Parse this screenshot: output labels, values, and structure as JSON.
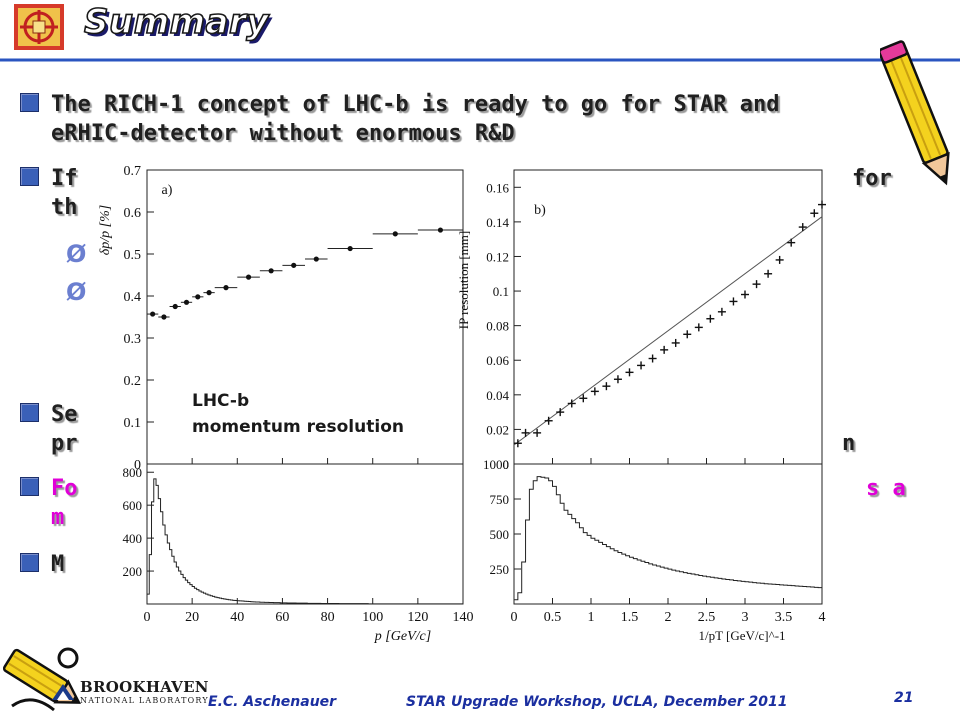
{
  "slide": {
    "title": "Summary",
    "bullets": [
      {
        "line1": "The RICH-1 concept of LHC-b is ready to go for STAR and",
        "line2": "eRHIC-detector without enormous R&D"
      },
      {
        "line1": "If",
        "line1_right": "for",
        "line2": "th"
      },
      {
        "line1": "Se",
        "line2": "pr",
        "line2_right": "n"
      },
      {
        "line1": "Fo",
        "line1_right": "s a",
        "line2": "m"
      },
      {
        "line1": "M"
      }
    ],
    "sub_markers": [
      "Ø",
      "Ø"
    ]
  },
  "annotation": {
    "line1": "LHC-b",
    "line2": "momentum resolution"
  },
  "footer": {
    "author": "E.C. Aschenauer",
    "event": "STAR Upgrade Workshop, UCLA, December 2011",
    "page": "21",
    "lab_name": "BROOKHAVEN",
    "lab_sub": "NATIONAL LABORATORY"
  },
  "colors": {
    "title_line": "#2a55c0",
    "bullet_box": "#3a60b8",
    "highlight": "#e000d8",
    "footer_text": "#1b2fa0"
  },
  "icons": [
    "lab-logo-icon",
    "pencil-icon",
    "pencil-icon",
    "bnl-logo-icon"
  ],
  "chart_data": [
    {
      "type": "scatter",
      "panel_label": "a)",
      "ylabel": "δp/p [%]",
      "xlim": [
        0,
        140
      ],
      "ylim": [
        0,
        0.7
      ],
      "xticks": [
        0,
        20,
        40,
        60,
        80,
        100,
        120,
        140
      ],
      "yticks": [
        0,
        0.1,
        0.2,
        0.3,
        0.4,
        0.5,
        0.6,
        0.7
      ],
      "points": [
        {
          "x": 2.5,
          "y": 0.357,
          "xerr": 2.5
        },
        {
          "x": 7.5,
          "y": 0.35,
          "xerr": 2.5
        },
        {
          "x": 12.5,
          "y": 0.375,
          "xerr": 2.5
        },
        {
          "x": 17.5,
          "y": 0.385,
          "xerr": 2.5
        },
        {
          "x": 22.5,
          "y": 0.398,
          "xerr": 2.5
        },
        {
          "x": 27.5,
          "y": 0.408,
          "xerr": 2.5
        },
        {
          "x": 35,
          "y": 0.42,
          "xerr": 5
        },
        {
          "x": 45,
          "y": 0.445,
          "xerr": 5
        },
        {
          "x": 55,
          "y": 0.46,
          "xerr": 5
        },
        {
          "x": 65,
          "y": 0.473,
          "xerr": 5
        },
        {
          "x": 75,
          "y": 0.488,
          "xerr": 5
        },
        {
          "x": 90,
          "y": 0.513,
          "xerr": 10
        },
        {
          "x": 110,
          "y": 0.548,
          "xerr": 10
        },
        {
          "x": 130,
          "y": 0.557,
          "xerr": 10
        }
      ]
    },
    {
      "type": "scatter",
      "panel_label": "b)",
      "ylabel": "IP resolution [mm]",
      "xlim": [
        0,
        4
      ],
      "ylim": [
        0,
        0.17
      ],
      "yticks": [
        0,
        0.02,
        0.04,
        0.06,
        0.08,
        0.1,
        0.12,
        0.14,
        0.16
      ],
      "fit_line": [
        [
          0,
          0.011
        ],
        [
          4,
          0.143
        ]
      ],
      "points": [
        {
          "x": 0.05,
          "y": 0.012
        },
        {
          "x": 0.15,
          "y": 0.018
        },
        {
          "x": 0.3,
          "y": 0.018
        },
        {
          "x": 0.45,
          "y": 0.025
        },
        {
          "x": 0.6,
          "y": 0.03
        },
        {
          "x": 0.75,
          "y": 0.035
        },
        {
          "x": 0.9,
          "y": 0.038
        },
        {
          "x": 1.05,
          "y": 0.042
        },
        {
          "x": 1.2,
          "y": 0.045
        },
        {
          "x": 1.35,
          "y": 0.049
        },
        {
          "x": 1.5,
          "y": 0.053
        },
        {
          "x": 1.65,
          "y": 0.057
        },
        {
          "x": 1.8,
          "y": 0.061
        },
        {
          "x": 1.95,
          "y": 0.066
        },
        {
          "x": 2.1,
          "y": 0.07
        },
        {
          "x": 2.25,
          "y": 0.075
        },
        {
          "x": 2.4,
          "y": 0.079
        },
        {
          "x": 2.55,
          "y": 0.084
        },
        {
          "x": 2.7,
          "y": 0.088
        },
        {
          "x": 2.85,
          "y": 0.094
        },
        {
          "x": 3.0,
          "y": 0.098
        },
        {
          "x": 3.15,
          "y": 0.104
        },
        {
          "x": 3.3,
          "y": 0.11
        },
        {
          "x": 3.45,
          "y": 0.118
        },
        {
          "x": 3.6,
          "y": 0.128
        },
        {
          "x": 3.75,
          "y": 0.137
        },
        {
          "x": 3.9,
          "y": 0.145
        },
        {
          "x": 4.0,
          "y": 0.15
        }
      ]
    },
    {
      "type": "histogram",
      "xlabel": "p [GeV/c]",
      "xlim": [
        0,
        140
      ],
      "ylim": [
        0,
        850
      ],
      "xticks": [
        0,
        20,
        40,
        60,
        80,
        100,
        120,
        140
      ],
      "yticks": [
        0,
        200,
        400,
        600,
        800
      ],
      "bin_width": 1,
      "values": [
        60,
        300,
        620,
        760,
        720,
        640,
        560,
        480,
        420,
        370,
        330,
        290,
        255,
        225,
        200,
        180,
        160,
        145,
        130,
        118,
        106,
        96,
        87,
        79,
        72,
        66,
        60,
        55,
        50,
        46,
        42,
        39,
        36,
        33,
        30,
        28,
        26,
        24,
        22,
        21,
        20,
        19,
        18,
        17,
        16,
        15,
        14,
        13,
        12,
        12,
        11,
        11,
        10,
        10,
        9,
        9,
        8,
        8,
        8,
        7,
        7,
        7,
        6,
        6,
        6,
        6,
        5,
        5,
        5,
        5,
        5,
        4,
        4,
        4,
        4,
        4,
        4,
        3,
        3,
        3,
        3,
        3,
        3,
        3,
        3,
        2,
        2,
        2,
        2,
        2,
        2,
        2,
        2,
        2,
        2,
        2,
        2,
        2,
        1,
        1,
        1,
        1,
        1,
        1,
        1,
        1,
        1,
        1,
        1,
        1,
        1,
        1,
        1,
        1,
        1,
        1,
        1,
        1,
        1,
        1,
        1,
        1,
        1,
        1,
        1,
        1,
        1,
        1,
        1,
        1,
        1,
        1,
        1,
        1,
        1,
        1,
        1,
        1,
        1,
        1
      ]
    },
    {
      "type": "histogram",
      "xlabel": "1/pT [GeV/c]^-1",
      "xlim": [
        0,
        4
      ],
      "ylim": [
        0,
        1000
      ],
      "xticks": [
        0,
        0.5,
        1,
        1.5,
        2,
        2.5,
        3,
        3.5,
        4
      ],
      "yticks": [
        0,
        250,
        500,
        750,
        1000
      ],
      "bin_width": 0.05,
      "values": [
        30,
        80,
        300,
        600,
        820,
        880,
        910,
        905,
        900,
        880,
        840,
        780,
        720,
        670,
        640,
        610,
        580,
        545,
        510,
        490,
        470,
        455,
        440,
        425,
        410,
        395,
        380,
        368,
        356,
        345,
        334,
        324,
        314,
        305,
        296,
        287,
        279,
        271,
        263,
        256,
        249,
        242,
        236,
        230,
        224,
        219,
        214,
        209,
        204,
        199,
        195,
        191,
        187,
        183,
        179,
        175,
        172,
        168,
        165,
        162,
        159,
        156,
        153,
        150,
        148,
        145,
        143,
        141,
        139,
        137,
        135,
        133,
        131,
        129,
        127,
        125,
        123,
        121,
        119,
        117
      ]
    }
  ]
}
